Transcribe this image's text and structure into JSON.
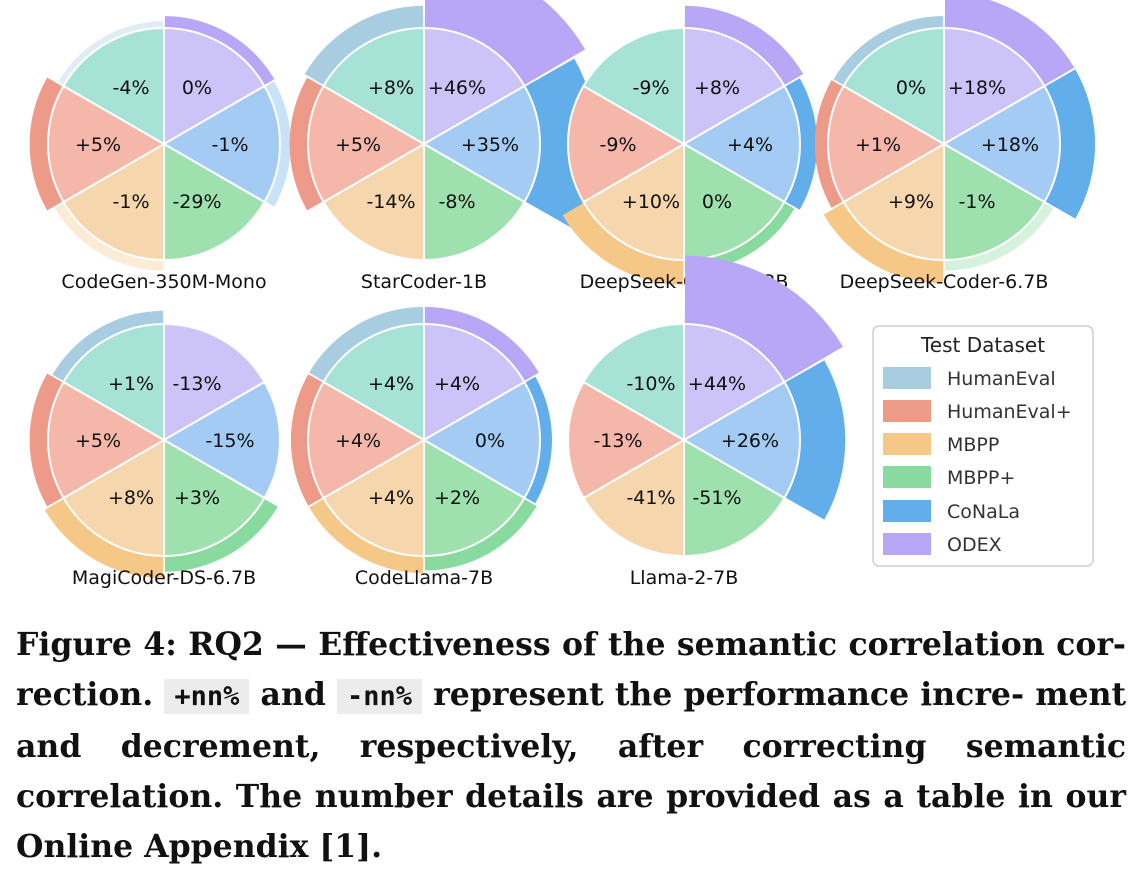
{
  "legend": {
    "title": "Test Dataset",
    "items": [
      {
        "key": "humaneval",
        "label": "HumanEval",
        "color": "#A8CCE0"
      },
      {
        "key": "humanevalplus",
        "label": "HumanEval+",
        "color": "#EE9A88"
      },
      {
        "key": "mbpp",
        "label": "MBPP",
        "color": "#F5C888"
      },
      {
        "key": "mbppplus",
        "label": "MBPP+",
        "color": "#88DA9E"
      },
      {
        "key": "conala",
        "label": "CoNaLa",
        "color": "#62AEEA"
      },
      {
        "key": "odex",
        "label": "ODEX",
        "color": "#B8A6F6"
      }
    ]
  },
  "slice_colors": {
    "odex": "#CCC4F8",
    "conala": "#A3CBF4",
    "mbppplus": "#9EE0AE",
    "mbpp": "#F6D6AD",
    "humanevalplus": "#F6B7AB",
    "humaneval": "#A6E2D6"
  },
  "chart_data": [
    {
      "type": "pie",
      "title": "CodeGen-350M-Mono",
      "categories": [
        "ODEX",
        "CoNaLa",
        "MBPP+",
        "MBPP",
        "HumanEval+",
        "HumanEval"
      ],
      "values": [
        0,
        -1,
        -29,
        -1,
        5,
        -4
      ],
      "labels": [
        "0%",
        "-1%",
        "-29%",
        "-1%",
        "+5%",
        "-4%"
      ]
    },
    {
      "type": "pie",
      "title": "StarCoder-1B",
      "categories": [
        "ODEX",
        "CoNaLa",
        "MBPP+",
        "MBPP",
        "HumanEval+",
        "HumanEval"
      ],
      "values": [
        46,
        35,
        -8,
        -14,
        5,
        8
      ],
      "labels": [
        "+46%",
        "+35%",
        "-8%",
        "-14%",
        "+5%",
        "+8%"
      ]
    },
    {
      "type": "pie",
      "title": "DeepSeek-Coder-1.3B",
      "categories": [
        "ODEX",
        "CoNaLa",
        "MBPP+",
        "MBPP",
        "HumanEval+",
        "HumanEval"
      ],
      "values": [
        8,
        4,
        0,
        10,
        -9,
        -9
      ],
      "labels": [
        "+8%",
        "+4%",
        "0%",
        "+10%",
        "-9%",
        "-9%"
      ]
    },
    {
      "type": "pie",
      "title": "DeepSeek-Coder-6.7B",
      "categories": [
        "ODEX",
        "CoNaLa",
        "MBPP+",
        "MBPP",
        "HumanEval+",
        "HumanEval"
      ],
      "values": [
        18,
        18,
        -1,
        9,
        1,
        0
      ],
      "labels": [
        "+18%",
        "+18%",
        "-1%",
        "+9%",
        "+1%",
        "0%"
      ]
    },
    {
      "type": "pie",
      "title": "MagiCoder-DS-6.7B",
      "categories": [
        "ODEX",
        "CoNaLa",
        "MBPP+",
        "MBPP",
        "HumanEval+",
        "HumanEval"
      ],
      "values": [
        -13,
        -15,
        3,
        8,
        5,
        1
      ],
      "labels": [
        "-13%",
        "-15%",
        "+3%",
        "+8%",
        "+5%",
        "+1%"
      ]
    },
    {
      "type": "pie",
      "title": "CodeLlama-7B",
      "categories": [
        "ODEX",
        "CoNaLa",
        "MBPP+",
        "MBPP",
        "HumanEval+",
        "HumanEval"
      ],
      "values": [
        4,
        0,
        2,
        4,
        4,
        4
      ],
      "labels": [
        "+4%",
        "0%",
        "+2%",
        "+4%",
        "+4%",
        "+4%"
      ]
    },
    {
      "type": "pie",
      "title": "Llama-2-7B",
      "categories": [
        "ODEX",
        "CoNaLa",
        "MBPP+",
        "MBPP",
        "HumanEval+",
        "HumanEval"
      ],
      "values": [
        44,
        26,
        -51,
        -41,
        -13,
        -10
      ],
      "labels": [
        "+44%",
        "+26%",
        "-51%",
        "-41%",
        "-13%",
        "-10%"
      ]
    }
  ],
  "caption": {
    "line1": "Figure 4: RQ2 — Effectiveness of the semantic correlation cor-",
    "line2_pre": "rection.",
    "code_plus": "+nn%",
    "line2_mid": "and",
    "code_minus": "-nn%",
    "line2_post": "represent the performance incre-",
    "line3": "ment and decrement, respectively, after correcting semantic",
    "line4": "correlation. The number details are provided as a table in",
    "line5": "our Online Appendix [1]."
  }
}
